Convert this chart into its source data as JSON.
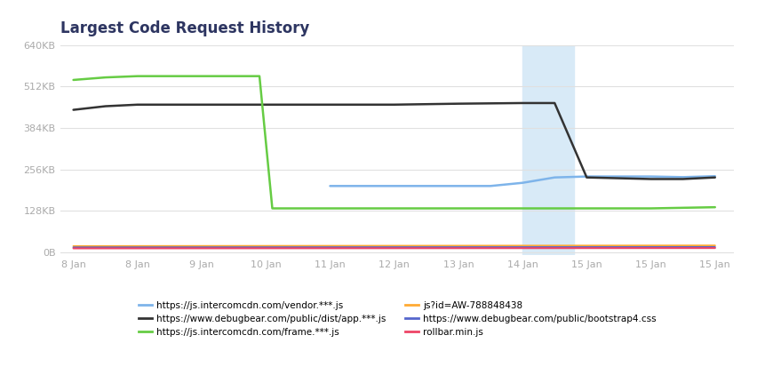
{
  "title": "Largest Code Request History",
  "title_color": "#2d3561",
  "background_color": "#ffffff",
  "plot_bg_color": "#ffffff",
  "grid_color": "#e0e0e0",
  "highlight_region": [
    7.0,
    7.8
  ],
  "highlight_color": "#d8eaf7",
  "x_ticks_pos": [
    0,
    1,
    2,
    3,
    4,
    5,
    6,
    7,
    8,
    9,
    10
  ],
  "x_labels": [
    "8 Jan",
    "8 Jan",
    "9 Jan",
    "10 Jan",
    "11 Jan",
    "12 Jan",
    "13 Jan",
    "14 Jan",
    "15 Jan",
    "15 Jan",
    "15 Jan"
  ],
  "y_ticks": [
    0,
    131072,
    262144,
    393216,
    524288,
    655360
  ],
  "y_labels": [
    "0B",
    "128KB",
    "256KB",
    "384KB",
    "512KB",
    "640KB"
  ],
  "ylim": [
    -8000,
    655360
  ],
  "xlim": [
    -0.2,
    10.3
  ],
  "series": [
    {
      "name": "https://js.intercomcdn.com/vendor.***.js",
      "color": "#7eb4ea",
      "linewidth": 1.8,
      "x": [
        4,
        4.5,
        5,
        6,
        6.5,
        7,
        7.5,
        8,
        9,
        9.5,
        10
      ],
      "y": [
        210000,
        210000,
        210000,
        210000,
        210000,
        220000,
        237000,
        240000,
        240000,
        238000,
        241000
      ]
    },
    {
      "name": "https://www.debugbear.com/public/dist/app.***.js",
      "color": "#333333",
      "linewidth": 1.8,
      "x": [
        0,
        0.5,
        1,
        2,
        3,
        4,
        5,
        6,
        7,
        7.5,
        8,
        9,
        9.5,
        10
      ],
      "y": [
        450560,
        462000,
        466944,
        466944,
        466944,
        466944,
        466944,
        470000,
        472000,
        472000,
        237000,
        232000,
        232000,
        237000
      ]
    },
    {
      "name": "https://js.intercomcdn.com/frame.***.js",
      "color": "#66cc44",
      "linewidth": 1.8,
      "x": [
        0,
        0.5,
        1,
        2,
        2.9,
        3.1,
        4,
        5,
        6,
        7,
        7.5,
        8,
        9,
        10
      ],
      "y": [
        545000,
        553000,
        557000,
        557000,
        557000,
        139264,
        139264,
        139264,
        139264,
        139264,
        139264,
        139264,
        139264,
        143000
      ]
    },
    {
      "name": "js?id=AW-788848438",
      "color": "#ffaa33",
      "linewidth": 1.5,
      "x": [
        0,
        10
      ],
      "y": [
        20000,
        22000
      ]
    },
    {
      "name": "https://www.debugbear.com/public/bootstrap4.css",
      "color": "#5566cc",
      "linewidth": 1.5,
      "x": [
        0,
        10
      ],
      "y": [
        16000,
        17000
      ]
    },
    {
      "name": "rollbar.min.js",
      "color": "#ee4466",
      "linewidth": 1.5,
      "x": [
        0,
        10
      ],
      "y": [
        13000,
        14000
      ]
    }
  ],
  "legend_cols": 2,
  "legend_order": [
    0,
    1,
    2,
    3,
    4,
    5
  ],
  "legend_entries": [
    {
      "label": "https://js.intercomcdn.com/vendor.***.js",
      "color": "#7eb4ea"
    },
    {
      "label": "https://www.debugbear.com/public/dist/app.***.js",
      "color": "#333333"
    },
    {
      "label": "https://js.intercomcdn.com/frame.***.js",
      "color": "#66cc44"
    },
    {
      "label": "js?id=AW-788848438",
      "color": "#ffaa33"
    },
    {
      "label": "https://www.debugbear.com/public/bootstrap4.css",
      "color": "#5566cc"
    },
    {
      "label": "rollbar.min.js",
      "color": "#ee4466"
    }
  ]
}
